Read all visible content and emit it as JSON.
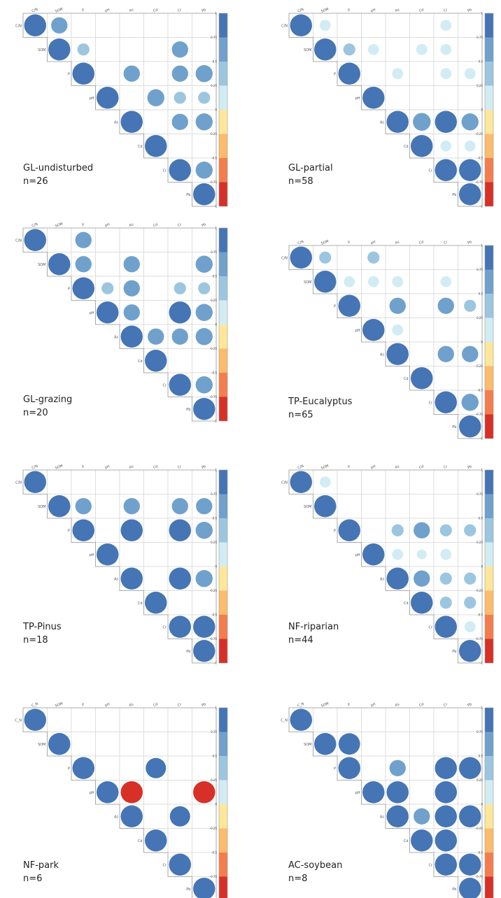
{
  "variables": [
    "C/N",
    "SOM",
    "P",
    "pH",
    "As",
    "Cd",
    "Cr",
    "Pb"
  ],
  "variables_pb_row": [
    "C/N",
    "SOM",
    "P",
    "pH",
    "As",
    "Cd",
    "Cr",
    "Pb"
  ],
  "colorbar": {
    "ticks": [
      "1",
      "0.75",
      "0.5",
      "0.25",
      "0",
      "-0.25",
      "-0.5",
      "-0.75",
      "-1"
    ],
    "colors": [
      "#4575b4",
      "#6fa1cc",
      "#9cc6e0",
      "#d2ecf4",
      "#fee79a",
      "#fdbb6b",
      "#f47d4d",
      "#d73027"
    ]
  },
  "chart_data": [
    {
      "type": "corrplot",
      "title": "GL-undisturbed",
      "n_label": "n=26",
      "labels": [
        "C/N",
        "SOM",
        "P",
        "pH",
        "As",
        "Cd",
        "Cr",
        "Pb"
      ],
      "cells": [
        [
          0,
          0,
          1
        ],
        [
          0,
          1,
          0.55
        ],
        [
          1,
          1,
          1
        ],
        [
          1,
          2,
          0.3
        ],
        [
          1,
          6,
          0.55
        ],
        [
          2,
          2,
          1
        ],
        [
          2,
          4,
          0.55
        ],
        [
          2,
          6,
          0.55
        ],
        [
          2,
          7,
          0.6
        ],
        [
          3,
          3,
          1
        ],
        [
          3,
          5,
          0.6
        ],
        [
          3,
          6,
          0.3
        ],
        [
          3,
          7,
          0.3
        ],
        [
          4,
          4,
          1
        ],
        [
          4,
          6,
          0.55
        ],
        [
          4,
          7,
          0.6
        ],
        [
          5,
          5,
          1
        ],
        [
          6,
          6,
          1
        ],
        [
          6,
          7,
          0.6
        ],
        [
          7,
          7,
          1
        ]
      ]
    },
    {
      "type": "corrplot",
      "title": "GL-partial",
      "n_label": "n=58",
      "labels": [
        "C/N",
        "SOM",
        "P",
        "pH",
        "As",
        "Cd",
        "Cr",
        "Pb"
      ],
      "cells": [
        [
          0,
          0,
          1
        ],
        [
          0,
          1,
          0.25
        ],
        [
          0,
          6,
          0.25
        ],
        [
          1,
          1,
          1
        ],
        [
          1,
          2,
          0.3
        ],
        [
          1,
          3,
          0.25
        ],
        [
          1,
          5,
          0.25
        ],
        [
          1,
          6,
          0.25
        ],
        [
          2,
          2,
          1
        ],
        [
          2,
          4,
          0.25
        ],
        [
          2,
          6,
          0.25
        ],
        [
          2,
          7,
          0.25
        ],
        [
          3,
          3,
          1
        ],
        [
          4,
          4,
          1
        ],
        [
          4,
          5,
          0.65
        ],
        [
          4,
          6,
          1
        ],
        [
          4,
          7,
          0.6
        ],
        [
          5,
          5,
          1
        ],
        [
          5,
          6,
          0.25
        ],
        [
          5,
          7,
          0.25
        ],
        [
          6,
          6,
          1
        ],
        [
          6,
          7,
          1
        ],
        [
          7,
          7,
          1
        ]
      ]
    },
    {
      "type": "corrplot",
      "title": "GL-grazing",
      "n_label": "n=20",
      "labels": [
        "C/N",
        "SOM",
        "P",
        "pH",
        "As",
        "Cd",
        "Cr",
        "Pb"
      ],
      "cells": [
        [
          0,
          0,
          1
        ],
        [
          0,
          2,
          0.55
        ],
        [
          1,
          1,
          1
        ],
        [
          1,
          2,
          0.55
        ],
        [
          1,
          4,
          0.55
        ],
        [
          1,
          7,
          0.6
        ],
        [
          2,
          2,
          1
        ],
        [
          2,
          3,
          0.3
        ],
        [
          2,
          4,
          0.55
        ],
        [
          2,
          6,
          0.3
        ],
        [
          2,
          7,
          0.3
        ],
        [
          3,
          3,
          1
        ],
        [
          3,
          4,
          0.55
        ],
        [
          3,
          6,
          1
        ],
        [
          3,
          7,
          0.6
        ],
        [
          4,
          4,
          1
        ],
        [
          4,
          5,
          0.55
        ],
        [
          4,
          6,
          0.55
        ],
        [
          4,
          7,
          0.6
        ],
        [
          5,
          5,
          1
        ],
        [
          6,
          6,
          1
        ],
        [
          6,
          7,
          0.6
        ],
        [
          7,
          7,
          1
        ]
      ]
    },
    {
      "type": "corrplot",
      "title": "TP-Eucalyptus",
      "n_label": "n=65",
      "labels": [
        "C/N",
        "SOM",
        "P",
        "pH",
        "As",
        "Cd",
        "Cr",
        "Pb"
      ],
      "cells": [
        [
          0,
          0,
          1
        ],
        [
          0,
          1,
          0.3
        ],
        [
          0,
          3,
          0.3
        ],
        [
          1,
          1,
          1
        ],
        [
          1,
          2,
          0.25
        ],
        [
          1,
          3,
          0.25
        ],
        [
          1,
          4,
          0.25
        ],
        [
          1,
          6,
          0.25
        ],
        [
          2,
          2,
          1
        ],
        [
          2,
          4,
          0.55
        ],
        [
          2,
          6,
          0.55
        ],
        [
          2,
          7,
          0.3
        ],
        [
          3,
          3,
          1
        ],
        [
          3,
          4,
          0.25
        ],
        [
          4,
          4,
          1
        ],
        [
          4,
          6,
          0.55
        ],
        [
          4,
          7,
          0.55
        ],
        [
          5,
          5,
          1
        ],
        [
          6,
          6,
          1
        ],
        [
          6,
          7,
          0.6
        ],
        [
          7,
          7,
          1
        ]
      ]
    },
    {
      "type": "corrplot",
      "title": "TP-Pinus",
      "n_label": "n=18",
      "labels": [
        "C/N",
        "SOM",
        "P",
        "pH",
        "As",
        "Cd",
        "Cr",
        "Pb"
      ],
      "cells": [
        [
          0,
          0,
          1
        ],
        [
          1,
          1,
          1
        ],
        [
          1,
          2,
          0.55
        ],
        [
          1,
          4,
          0.55
        ],
        [
          1,
          6,
          0.55
        ],
        [
          1,
          7,
          0.55
        ],
        [
          2,
          2,
          1
        ],
        [
          2,
          4,
          1
        ],
        [
          2,
          6,
          1
        ],
        [
          2,
          7,
          0.6
        ],
        [
          3,
          3,
          1
        ],
        [
          4,
          4,
          1
        ],
        [
          4,
          6,
          1
        ],
        [
          4,
          7,
          0.6
        ],
        [
          5,
          5,
          1
        ],
        [
          6,
          6,
          1
        ],
        [
          6,
          7,
          1
        ],
        [
          7,
          7,
          1
        ]
      ]
    },
    {
      "type": "corrplot",
      "title": "NF-riparian",
      "n_label": "n=44",
      "labels": [
        "C/N",
        "SOM",
        "P",
        "pH",
        "As",
        "Cd",
        "Cr",
        "Pb"
      ],
      "cells": [
        [
          0,
          0,
          1
        ],
        [
          0,
          1,
          0.25
        ],
        [
          1,
          1,
          1
        ],
        [
          2,
          2,
          1
        ],
        [
          2,
          4,
          0.3
        ],
        [
          2,
          5,
          0.55
        ],
        [
          2,
          6,
          0.3
        ],
        [
          2,
          7,
          0.3
        ],
        [
          3,
          3,
          1
        ],
        [
          3,
          4,
          0.25
        ],
        [
          3,
          5,
          0.2
        ],
        [
          3,
          6,
          0.25
        ],
        [
          4,
          4,
          1
        ],
        [
          4,
          5,
          0.55
        ],
        [
          4,
          6,
          0.3
        ],
        [
          4,
          7,
          0.3
        ],
        [
          5,
          5,
          1
        ],
        [
          5,
          6,
          0.3
        ],
        [
          5,
          7,
          0.3
        ],
        [
          6,
          6,
          1
        ],
        [
          6,
          7,
          0.25
        ],
        [
          7,
          7,
          1
        ]
      ]
    },
    {
      "type": "corrplot",
      "title": "NF-park",
      "n_label": "n=6",
      "labels": [
        "C_N",
        "SOM",
        "P",
        "pH",
        "As",
        "Cd",
        "Cr",
        "Pb"
      ],
      "cells": [
        [
          0,
          0,
          1
        ],
        [
          1,
          1,
          1
        ],
        [
          2,
          2,
          1
        ],
        [
          2,
          5,
          0.85
        ],
        [
          3,
          3,
          1
        ],
        [
          3,
          4,
          -1
        ],
        [
          3,
          7,
          -1
        ],
        [
          4,
          4,
          1
        ],
        [
          4,
          6,
          0.85
        ],
        [
          5,
          5,
          1
        ],
        [
          6,
          6,
          1
        ],
        [
          7,
          7,
          1
        ]
      ]
    },
    {
      "type": "corrplot",
      "title": "AC-soybean",
      "n_label": "n=8",
      "labels": [
        "C_N",
        "SOM",
        "P",
        "pH",
        "As",
        "Cd",
        "Cr",
        "Pb"
      ],
      "cells": [
        [
          0,
          0,
          1
        ],
        [
          1,
          1,
          1
        ],
        [
          1,
          2,
          0.95
        ],
        [
          2,
          2,
          1
        ],
        [
          2,
          4,
          0.55
        ],
        [
          2,
          6,
          1
        ],
        [
          2,
          7,
          1
        ],
        [
          3,
          3,
          1
        ],
        [
          3,
          4,
          1
        ],
        [
          3,
          6,
          1
        ],
        [
          4,
          4,
          1
        ],
        [
          4,
          5,
          0.55
        ],
        [
          4,
          6,
          1
        ],
        [
          4,
          7,
          1
        ],
        [
          5,
          5,
          1
        ],
        [
          5,
          6,
          1
        ],
        [
          6,
          6,
          1
        ],
        [
          6,
          7,
          1
        ],
        [
          7,
          7,
          1
        ]
      ]
    }
  ]
}
